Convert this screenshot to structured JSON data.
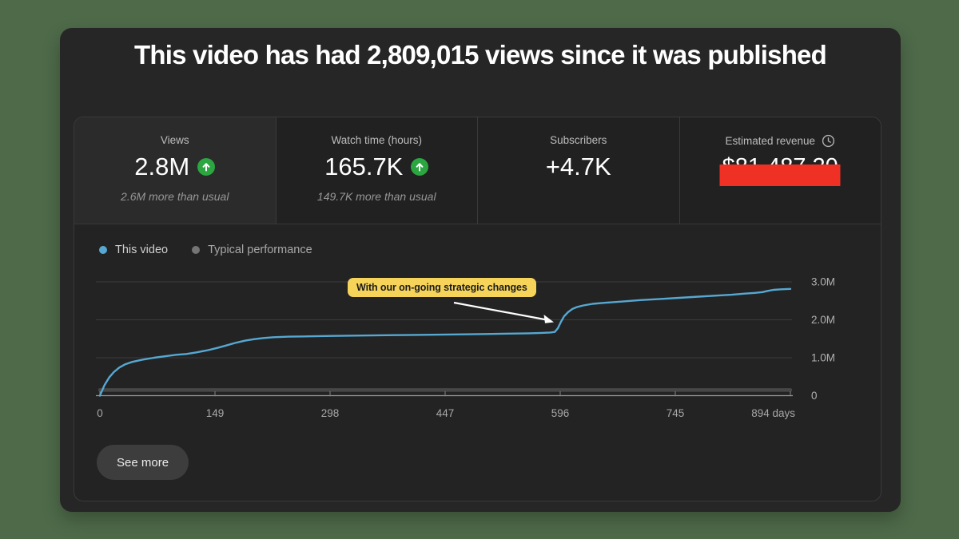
{
  "page": {
    "background_color": "#4e6a49"
  },
  "card": {
    "background_color": "#262626",
    "title": "This video has had 2,809,015 views since it was published"
  },
  "stats": {
    "cells": [
      {
        "label": "Views",
        "value": "2.8M",
        "delta_icon": "up-arrow-badge",
        "delta_color": "#2ba640",
        "sub": "2.6M more than usual"
      },
      {
        "label": "Watch time (hours)",
        "value": "165.7K",
        "delta_icon": "up-arrow-badge",
        "delta_color": "#2ba640",
        "sub": "149.7K more than usual"
      },
      {
        "label": "Subscribers",
        "value": "+4.7K"
      },
      {
        "label": "Estimated revenue",
        "icon": "clock-icon",
        "value": "$81,487.20",
        "redacted": true,
        "redact_color": "#ef3024"
      }
    ]
  },
  "legend": [
    {
      "label": "This video",
      "color": "#56a8d2"
    },
    {
      "label": "Typical performance",
      "color": "#757575"
    }
  ],
  "annotation": {
    "text": "With our on-going strategic changes",
    "background": "#f6d45a",
    "points_to_day": 596
  },
  "see_more_label": "See more",
  "chart_data": {
    "type": "line",
    "xlabel": "days",
    "x_ticks": [
      0,
      149,
      298,
      447,
      596,
      745,
      894
    ],
    "x_tick_labels": [
      "0",
      "149",
      "298",
      "447",
      "596",
      "745",
      "894 days"
    ],
    "y_ticks": [
      0,
      1000000,
      2000000,
      3000000
    ],
    "y_tick_labels": [
      "0",
      "1.0M",
      "2.0M",
      "3.0M"
    ],
    "xlim": [
      0,
      894
    ],
    "ylim": [
      0,
      3300000
    ],
    "grid": true,
    "legend_position": "top-left",
    "series": [
      {
        "name": "This video",
        "color": "#56a8d2",
        "points": [
          [
            0,
            0
          ],
          [
            6,
            280000
          ],
          [
            12,
            480000
          ],
          [
            18,
            620000
          ],
          [
            25,
            740000
          ],
          [
            33,
            830000
          ],
          [
            42,
            890000
          ],
          [
            55,
            950000
          ],
          [
            70,
            1000000
          ],
          [
            85,
            1040000
          ],
          [
            100,
            1080000
          ],
          [
            112,
            1100000
          ],
          [
            125,
            1140000
          ],
          [
            140,
            1200000
          ],
          [
            152,
            1260000
          ],
          [
            163,
            1320000
          ],
          [
            175,
            1390000
          ],
          [
            188,
            1450000
          ],
          [
            200,
            1490000
          ],
          [
            212,
            1520000
          ],
          [
            225,
            1540000
          ],
          [
            245,
            1555000
          ],
          [
            270,
            1565000
          ],
          [
            300,
            1575000
          ],
          [
            340,
            1585000
          ],
          [
            380,
            1595000
          ],
          [
            420,
            1605000
          ],
          [
            460,
            1615000
          ],
          [
            500,
            1625000
          ],
          [
            530,
            1635000
          ],
          [
            555,
            1645000
          ],
          [
            572,
            1655000
          ],
          [
            583,
            1665000
          ],
          [
            589,
            1680000
          ],
          [
            593,
            1780000
          ],
          [
            597,
            1950000
          ],
          [
            601,
            2090000
          ],
          [
            606,
            2200000
          ],
          [
            612,
            2290000
          ],
          [
            618,
            2340000
          ],
          [
            626,
            2380000
          ],
          [
            638,
            2420000
          ],
          [
            655,
            2450000
          ],
          [
            675,
            2480000
          ],
          [
            700,
            2520000
          ],
          [
            725,
            2550000
          ],
          [
            750,
            2580000
          ],
          [
            775,
            2610000
          ],
          [
            800,
            2640000
          ],
          [
            818,
            2660000
          ],
          [
            835,
            2690000
          ],
          [
            848,
            2710000
          ],
          [
            858,
            2730000
          ],
          [
            864,
            2760000
          ],
          [
            872,
            2790000
          ],
          [
            882,
            2805000
          ],
          [
            894,
            2815000
          ]
        ]
      },
      {
        "name": "Typical performance",
        "color": "#474747",
        "points": [
          [
            0,
            150000
          ],
          [
            894,
            150000
          ]
        ]
      }
    ]
  }
}
